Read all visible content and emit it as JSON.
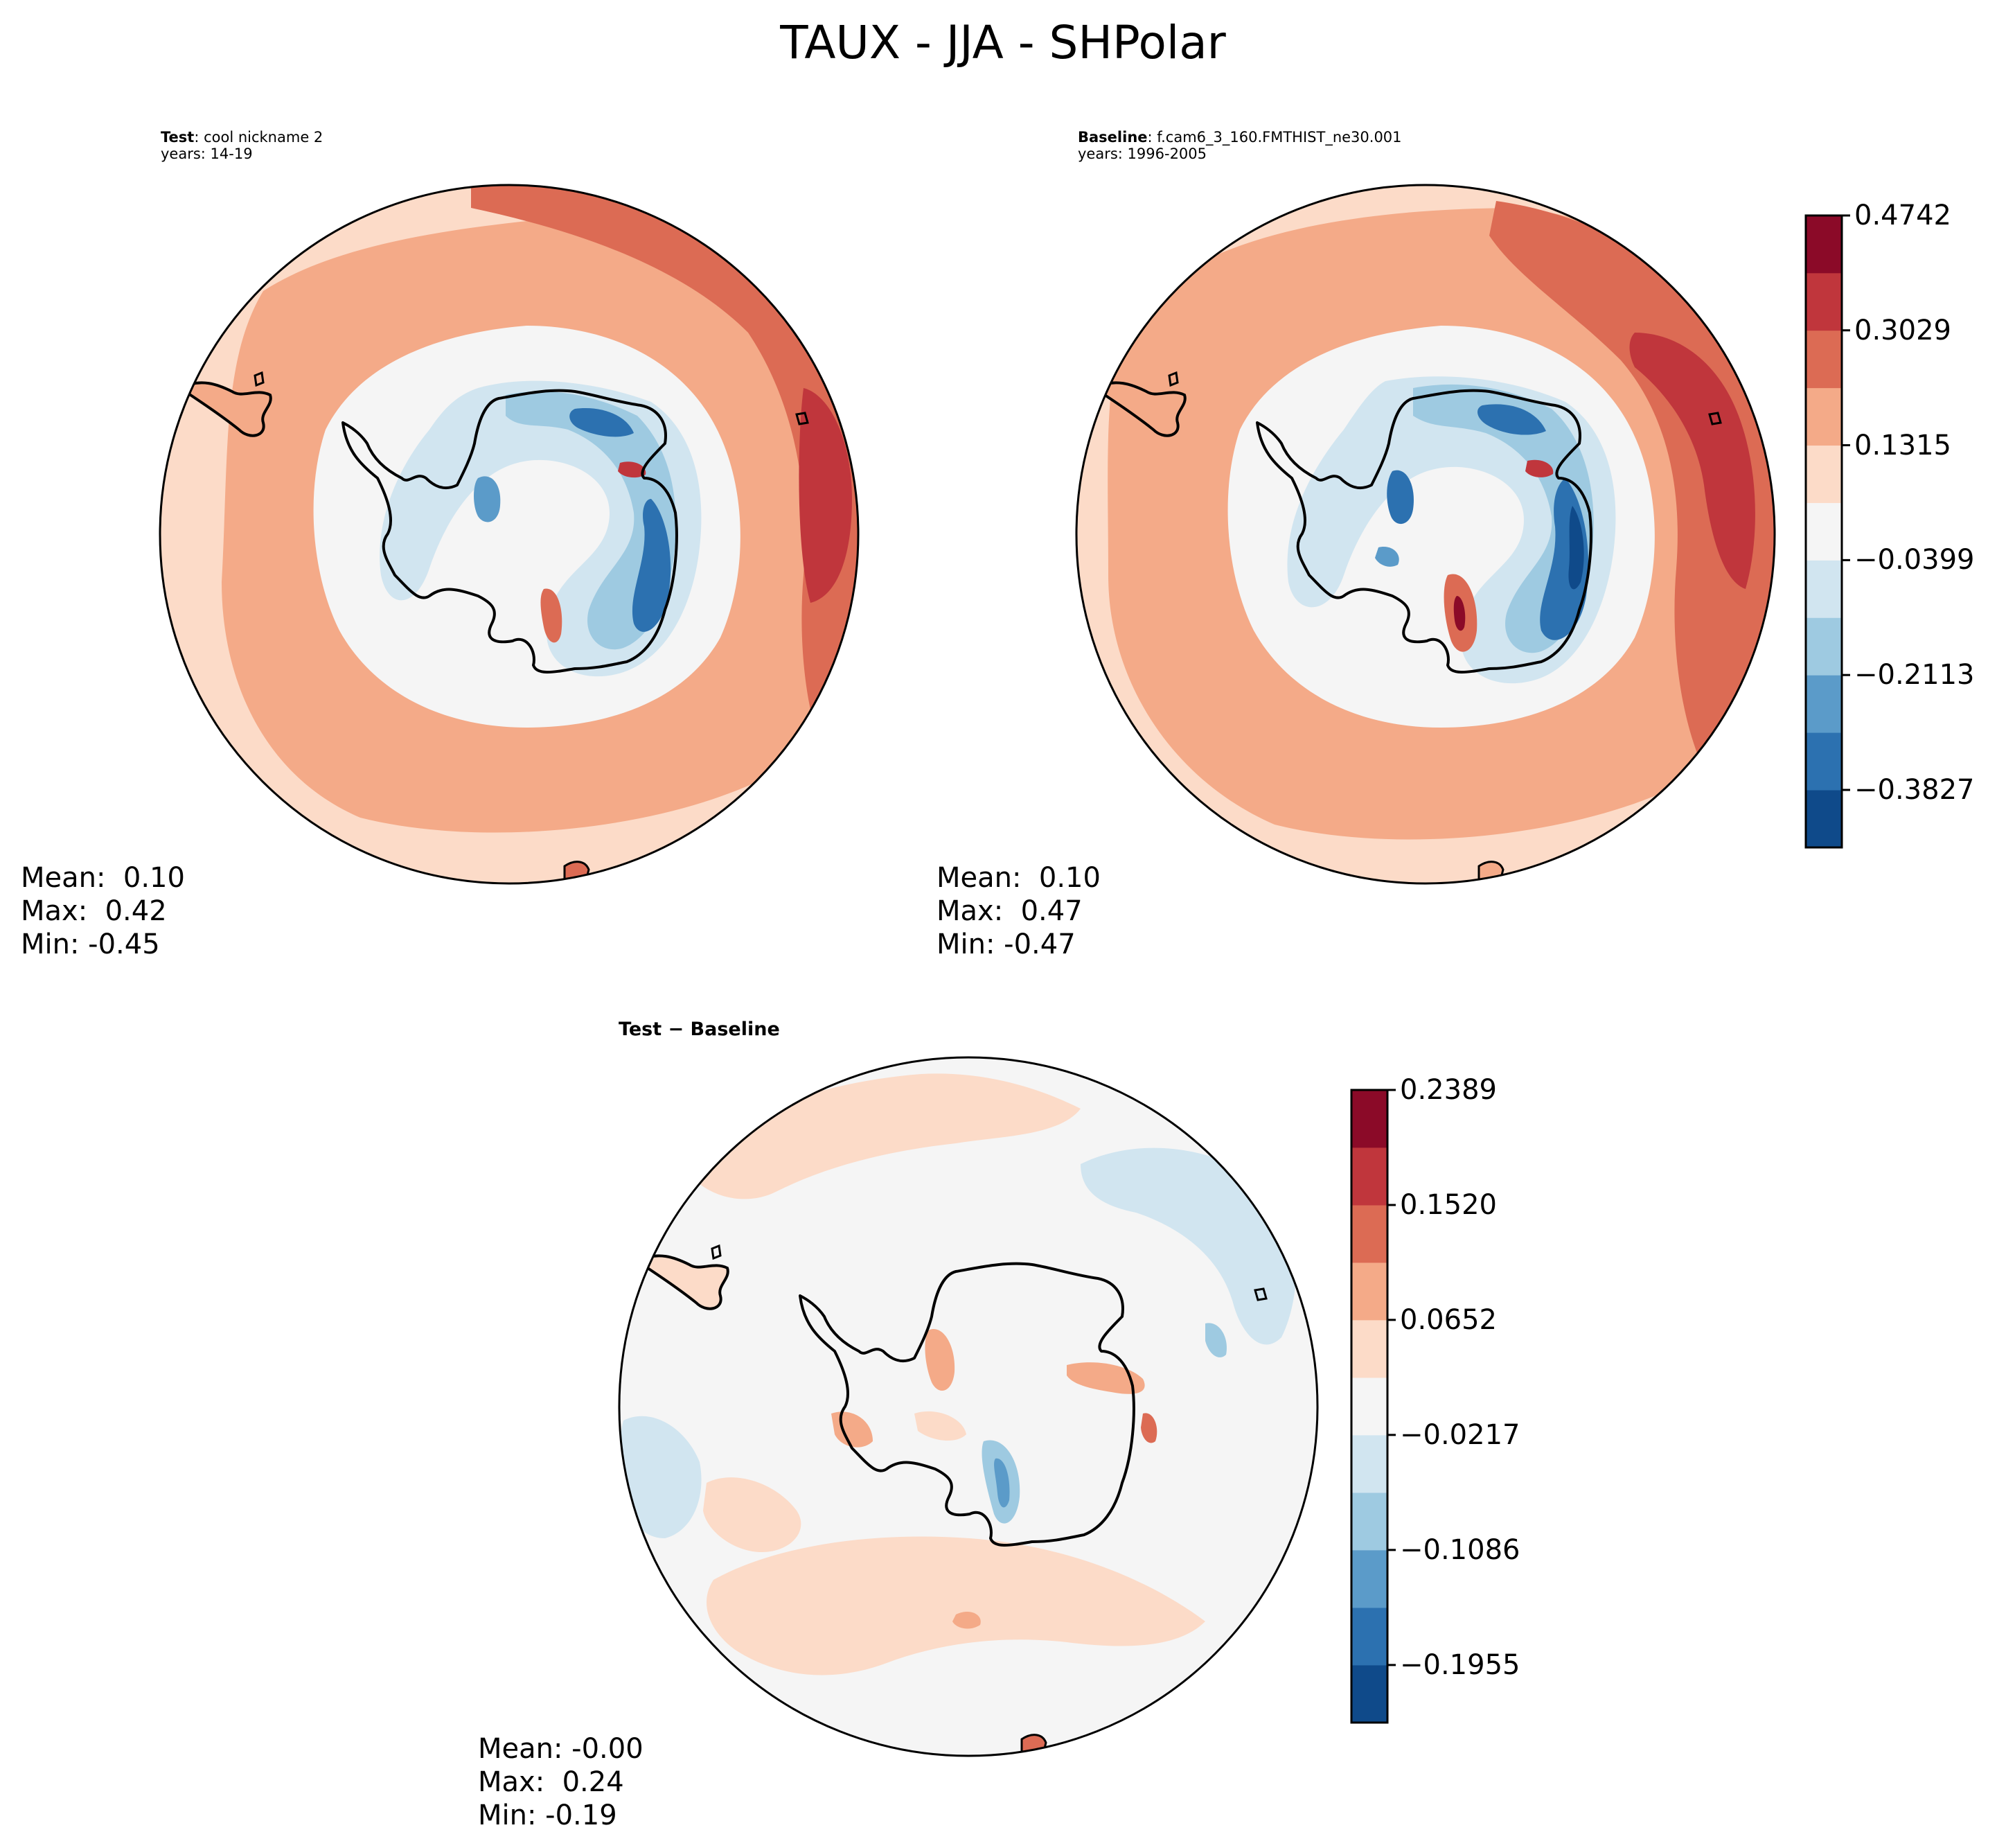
{
  "figure": {
    "suptitle": "TAUX - JJA - SHPolar"
  },
  "panels": [
    {
      "id": "test",
      "title_bold": "Test",
      "title_rest": ": cool nickname 2",
      "years": "years: 14-19",
      "stats": {
        "mean": "Mean:  0.10",
        "max": "Max:  0.42",
        "min": "Min: -0.45"
      }
    },
    {
      "id": "baseline",
      "title_bold": "Baseline",
      "title_rest": ": f.cam6_3_160.FMTHIST_ne30.001",
      "years": "years: 1996-2005",
      "stats": {
        "mean": "Mean:  0.10",
        "max": "Max:  0.47",
        "min": "Min: -0.47"
      }
    },
    {
      "id": "diff",
      "title": "Test − Baseline",
      "stats": {
        "mean": "Mean: -0.00",
        "max": "Max:  0.24",
        "min": "Min: -0.19"
      }
    }
  ],
  "colors": {
    "rdbu_11": [
      "#08306b",
      "#0f4a8a",
      "#2c71b0",
      "#5b9bc9",
      "#9ecae1",
      "#d1e5f0",
      "#f5f5f5",
      "#fcdbc8",
      "#f4aa88",
      "#dc6b54",
      "#c0363c",
      "#8b0a28"
    ]
  },
  "chart_data": [
    {
      "type": "heatmap",
      "name": "Test",
      "projection": "south-polar stereographic",
      "variable": "TAUX",
      "season": "JJA",
      "value_range": [
        -0.45,
        0.42
      ],
      "mean": 0.1,
      "colorbar": "shared with Baseline"
    },
    {
      "type": "heatmap",
      "name": "Baseline",
      "projection": "south-polar stereographic",
      "variable": "TAUX",
      "season": "JJA",
      "value_range": [
        -0.47,
        0.47
      ],
      "mean": 0.1,
      "colorbar": {
        "levels": [
          -0.4685,
          -0.3827,
          -0.297,
          -0.2113,
          -0.1256,
          -0.0399,
          0.0458,
          0.1315,
          0.2172,
          0.3029,
          0.3886,
          0.4742
        ],
        "tick_labels": [
          "0.4742",
          "0.3029",
          "0.1315",
          "−0.0399",
          "−0.2113",
          "−0.3827"
        ],
        "tick_values": [
          0.4742,
          0.3029,
          0.1315,
          -0.0399,
          -0.2113,
          -0.3827
        ]
      }
    },
    {
      "type": "heatmap",
      "name": "Test - Baseline",
      "projection": "south-polar stereographic",
      "variable": "TAUX difference",
      "value_range": [
        -0.19,
        0.24
      ],
      "mean": -0.0,
      "colorbar": {
        "levels": [
          -0.239,
          -0.1955,
          -0.1521,
          -0.1086,
          -0.0652,
          -0.0217,
          0.0217,
          0.0652,
          0.1086,
          0.152,
          0.1955,
          0.2389
        ],
        "tick_labels": [
          "0.2389",
          "0.1520",
          "0.0652",
          "−0.0217",
          "−0.1086",
          "−0.1955"
        ],
        "tick_values": [
          0.2389,
          0.152,
          0.0652,
          -0.0217,
          -0.1086,
          -0.1955
        ]
      }
    }
  ]
}
